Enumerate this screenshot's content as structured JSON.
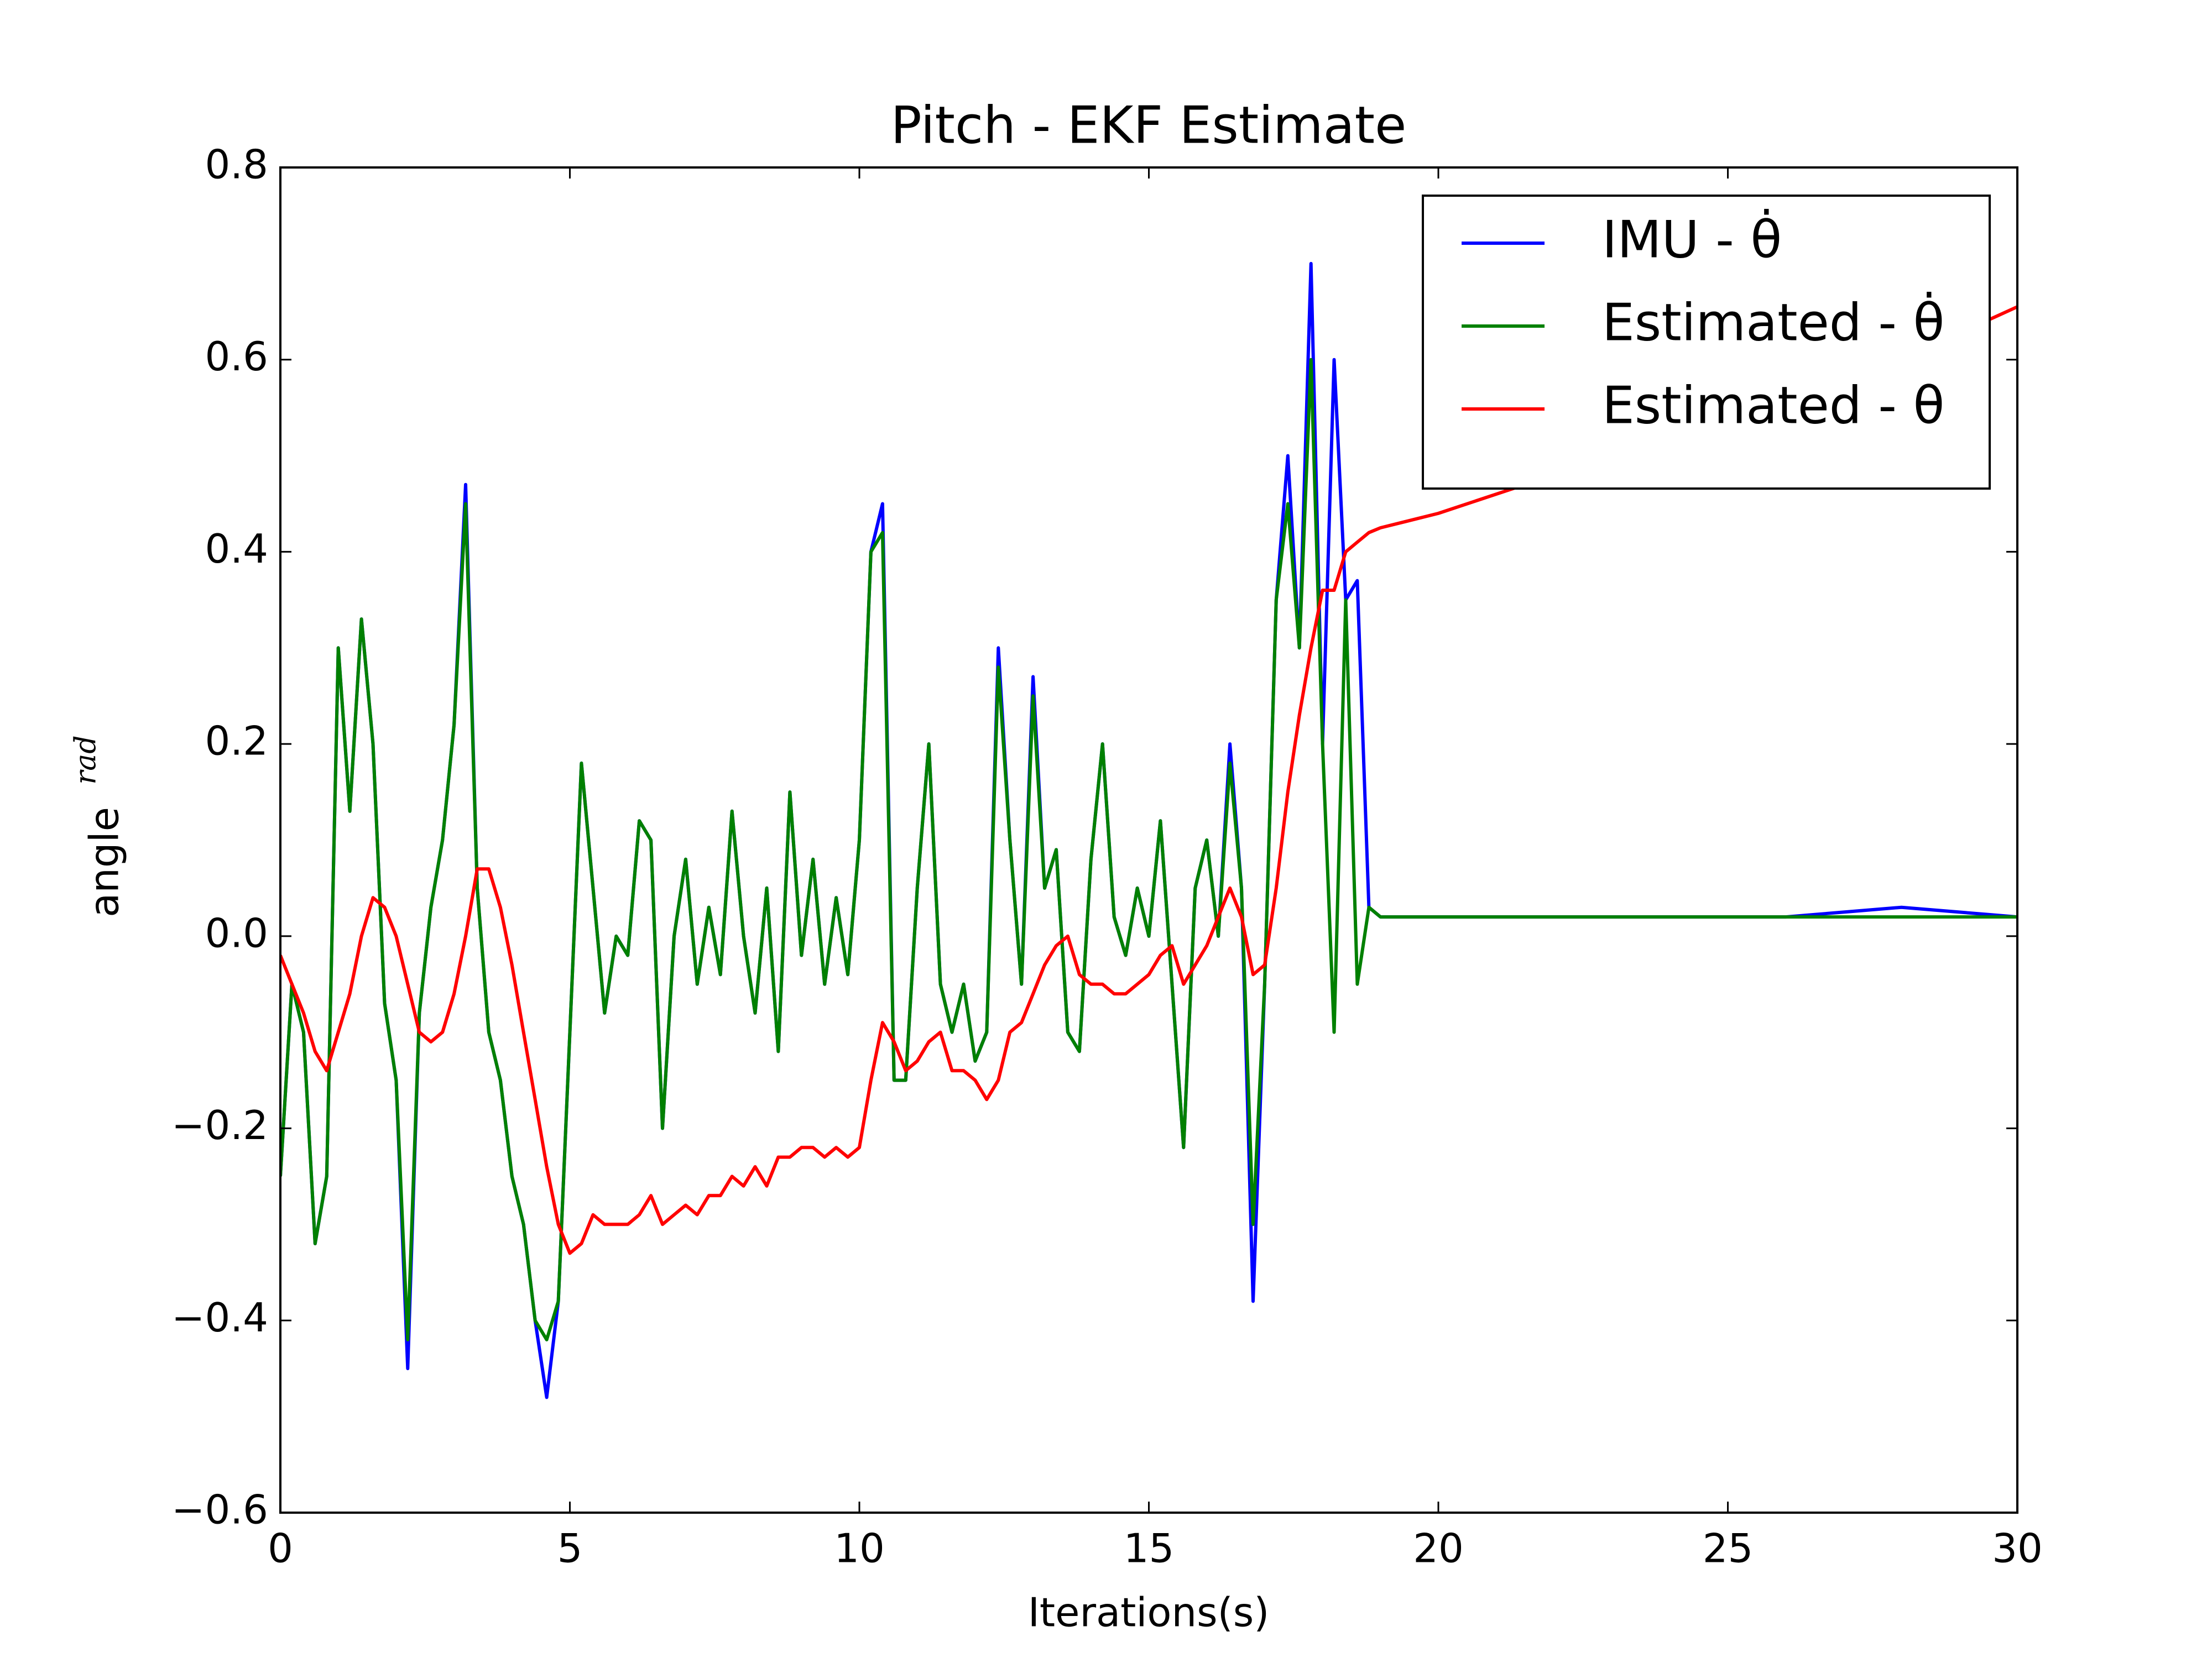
{
  "chart_data": {
    "type": "line",
    "title": "Pitch - EKF Estimate",
    "xlabel": "Iterations(s)",
    "ylabel": "angle",
    "ylabel_sup": "rad",
    "x": [
      0,
      0.2,
      0.4,
      0.6,
      0.8,
      1,
      1.2,
      1.4,
      1.6,
      1.8,
      2,
      2.2,
      2.4,
      2.6,
      2.8,
      3,
      3.2,
      3.4,
      3.6,
      3.8,
      4,
      4.2,
      4.4,
      4.6,
      4.8,
      5,
      5.2,
      5.4,
      5.6,
      5.8,
      6,
      6.2,
      6.4,
      6.6,
      6.8,
      7,
      7.2,
      7.4,
      7.6,
      7.8,
      8,
      8.2,
      8.4,
      8.6,
      8.8,
      9,
      9.2,
      9.4,
      9.6,
      9.8,
      10,
      10.2,
      10.4,
      10.6,
      10.8,
      11,
      11.2,
      11.4,
      11.6,
      11.8,
      12,
      12.2,
      12.4,
      12.6,
      12.8,
      13,
      13.2,
      13.4,
      13.6,
      13.8,
      14,
      14.2,
      14.4,
      14.6,
      14.8,
      15,
      15.2,
      15.4,
      15.6,
      15.8,
      16,
      16.2,
      16.4,
      16.6,
      16.8,
      17,
      17.2,
      17.4,
      17.6,
      17.8,
      18,
      18.2,
      18.4,
      18.6,
      18.8,
      19,
      20,
      22,
      24,
      26,
      28,
      30
    ],
    "series": [
      {
        "name": "IMU - θ̇",
        "color": "#0000ff",
        "values": [
          -0.25,
          -0.05,
          -0.1,
          -0.32,
          -0.25,
          0.3,
          0.13,
          0.33,
          0.2,
          -0.07,
          -0.15,
          -0.45,
          -0.08,
          0.03,
          0.1,
          0.22,
          0.47,
          0.05,
          -0.1,
          -0.15,
          -0.25,
          -0.3,
          -0.4,
          -0.48,
          -0.38,
          -0.1,
          0.18,
          0.05,
          -0.08,
          0.0,
          -0.02,
          0.12,
          0.1,
          -0.2,
          0.0,
          0.08,
          -0.05,
          0.03,
          -0.04,
          0.13,
          0.0,
          -0.08,
          0.05,
          -0.12,
          0.15,
          -0.02,
          0.08,
          -0.05,
          0.04,
          -0.04,
          0.1,
          0.4,
          0.45,
          -0.15,
          -0.15,
          0.05,
          0.2,
          -0.05,
          -0.1,
          -0.05,
          -0.13,
          -0.1,
          0.3,
          0.1,
          -0.05,
          0.27,
          0.05,
          0.09,
          -0.1,
          -0.12,
          0.08,
          0.2,
          0.02,
          -0.02,
          0.05,
          0.0,
          0.12,
          -0.05,
          -0.22,
          0.05,
          0.1,
          0.0,
          0.2,
          0.05,
          -0.38,
          -0.05,
          0.35,
          0.5,
          0.3,
          0.7,
          0.2,
          0.6,
          0.35,
          0.37,
          0.03,
          0.02,
          0.02,
          0.02,
          0.02,
          0.02,
          0.03,
          0.02
        ]
      },
      {
        "name": "Estimated - θ̇",
        "color": "#008000",
        "values": [
          -0.25,
          -0.05,
          -0.1,
          -0.32,
          -0.25,
          0.3,
          0.13,
          0.33,
          0.2,
          -0.07,
          -0.15,
          -0.42,
          -0.08,
          0.03,
          0.1,
          0.22,
          0.45,
          0.05,
          -0.1,
          -0.15,
          -0.25,
          -0.3,
          -0.4,
          -0.42,
          -0.38,
          -0.1,
          0.18,
          0.05,
          -0.08,
          0.0,
          -0.02,
          0.12,
          0.1,
          -0.2,
          0.0,
          0.08,
          -0.05,
          0.03,
          -0.04,
          0.13,
          0.0,
          -0.08,
          0.05,
          -0.12,
          0.15,
          -0.02,
          0.08,
          -0.05,
          0.04,
          -0.04,
          0.1,
          0.4,
          0.42,
          -0.15,
          -0.15,
          0.05,
          0.2,
          -0.05,
          -0.1,
          -0.05,
          -0.13,
          -0.1,
          0.28,
          0.1,
          -0.05,
          0.25,
          0.05,
          0.09,
          -0.1,
          -0.12,
          0.08,
          0.2,
          0.02,
          -0.02,
          0.05,
          0.0,
          0.12,
          -0.05,
          -0.22,
          0.05,
          0.1,
          0.0,
          0.18,
          0.05,
          -0.3,
          -0.05,
          0.35,
          0.45,
          0.3,
          0.6,
          0.2,
          -0.1,
          0.35,
          -0.05,
          0.03,
          0.02,
          0.02,
          0.02,
          0.02,
          0.02,
          0.02,
          0.02
        ]
      },
      {
        "name": "Estimated - θ",
        "color": "#ff0000",
        "values": [
          -0.02,
          -0.05,
          -0.08,
          -0.12,
          -0.14,
          -0.1,
          -0.06,
          0.0,
          0.04,
          0.03,
          0.0,
          -0.05,
          -0.1,
          -0.11,
          -0.1,
          -0.06,
          0.0,
          0.07,
          0.07,
          0.03,
          -0.03,
          -0.1,
          -0.17,
          -0.24,
          -0.3,
          -0.33,
          -0.32,
          -0.29,
          -0.3,
          -0.3,
          -0.3,
          -0.29,
          -0.27,
          -0.3,
          -0.29,
          -0.28,
          -0.29,
          -0.27,
          -0.27,
          -0.25,
          -0.26,
          -0.24,
          -0.26,
          -0.23,
          -0.23,
          -0.22,
          -0.22,
          -0.23,
          -0.22,
          -0.23,
          -0.22,
          -0.15,
          -0.09,
          -0.11,
          -0.14,
          -0.13,
          -0.11,
          -0.1,
          -0.14,
          -0.14,
          -0.15,
          -0.17,
          -0.15,
          -0.1,
          -0.09,
          -0.06,
          -0.03,
          -0.01,
          0.0,
          -0.04,
          -0.05,
          -0.05,
          -0.06,
          -0.06,
          -0.05,
          -0.04,
          -0.02,
          -0.01,
          -0.05,
          -0.03,
          -0.01,
          0.02,
          0.05,
          0.02,
          -0.04,
          -0.03,
          0.05,
          0.15,
          0.23,
          0.3,
          0.36,
          0.36,
          0.4,
          0.41,
          0.42,
          0.425,
          0.44,
          0.48,
          0.52,
          0.56,
          0.6,
          0.655
        ]
      }
    ],
    "xlim": [
      0,
      30
    ],
    "xticks": [
      0,
      5,
      10,
      15,
      20,
      25,
      30
    ],
    "ylim": [
      -0.6,
      0.8
    ],
    "yticks": [
      {
        "value": -0.6,
        "label": "−0.6"
      },
      {
        "value": -0.4,
        "label": "−0.4"
      },
      {
        "value": -0.2,
        "label": "−0.2"
      },
      {
        "value": 0,
        "label": "0.0"
      },
      0.2,
      0.4,
      0.6,
      0.8
    ],
    "legend": "upper right"
  }
}
